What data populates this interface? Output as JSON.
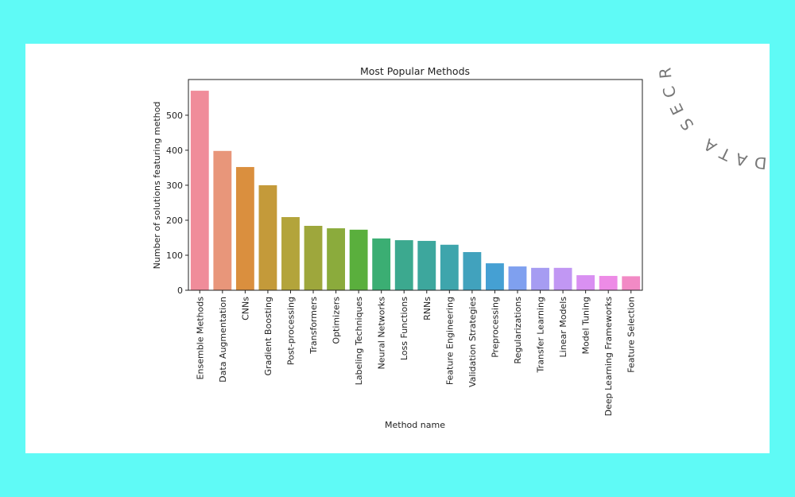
{
  "chart_data": {
    "type": "bar",
    "title": "Most Popular Methods",
    "x_label": "Method name",
    "y_label": "Number of solutions featuring method",
    "categories": [
      "Ensemble Methods",
      "Data Augmentation",
      "CNNs",
      "Gradient Boosting",
      "Post-processing",
      "Transformers",
      "Optimizers",
      "Labeling Techniques",
      "Neural Networks",
      "Loss Functions",
      "RNNs",
      "Feature Engineering",
      "Validation Strategies",
      "Preprocessing",
      "Regularizations",
      "Transfer Learning",
      "Linear Models",
      "Model Tuning",
      "Deep Learning Frameworks",
      "Feature Selection"
    ],
    "values": [
      570,
      398,
      352,
      300,
      209,
      184,
      177,
      173,
      148,
      143,
      141,
      130,
      109,
      77,
      68,
      64,
      64,
      43,
      41,
      40
    ],
    "colors": [
      "#f08c9a",
      "#e8967a",
      "#da8f3e",
      "#c49a3a",
      "#b3a43b",
      "#9ea73c",
      "#8bab3c",
      "#5aaf3d",
      "#3bae73",
      "#3ca98f",
      "#3da79d",
      "#3ea5ac",
      "#41a2bd",
      "#45a0d3",
      "#7fa0ef",
      "#a69cf2",
      "#c197f3",
      "#d990f2",
      "#ed8be6",
      "#f28ac5"
    ],
    "ylim": [
      0,
      602
    ],
    "yticks": [
      0,
      100,
      200,
      300,
      400,
      500
    ]
  },
  "watermark": "DATA SECRE"
}
